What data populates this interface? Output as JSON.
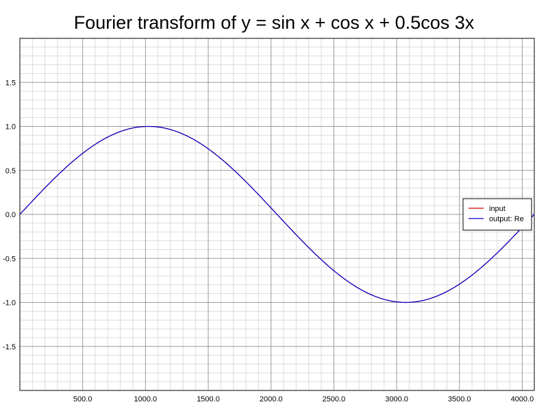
{
  "chart_data": {
    "type": "line",
    "title": "Fourier transform of y = sin x + cos x + 0.5cos 3x",
    "xlabel": "",
    "ylabel": "",
    "xlim": [
      0,
      4096
    ],
    "ylim": [
      -2,
      2
    ],
    "xticks": [
      500,
      1000,
      1500,
      2000,
      2500,
      3000,
      3500,
      4000
    ],
    "xtick_labels": [
      "500.0",
      "1000.0",
      "1500.0",
      "2000.0",
      "2500.0",
      "3000.0",
      "3500.0",
      "4000.0"
    ],
    "yticks": [
      -1.5,
      -1.0,
      -0.5,
      0.0,
      0.5,
      1.0,
      1.5
    ],
    "ytick_labels": [
      "-1.5",
      "-1.0",
      "-0.5",
      "0.0",
      "0.5",
      "1.0",
      "1.5"
    ],
    "grid": true,
    "legend_position": "right",
    "series": [
      {
        "name": "input",
        "color": "#cc0000",
        "x": [
          0,
          256,
          512,
          768,
          1024,
          1280,
          1536,
          1792,
          2048,
          2304,
          2560,
          2816,
          3072,
          3328,
          3584,
          3840,
          4096
        ],
        "y": [
          0.0,
          0.383,
          0.707,
          0.924,
          1.0,
          0.924,
          0.707,
          0.383,
          0.0,
          -0.383,
          -0.707,
          -0.924,
          -1.0,
          -0.924,
          -0.707,
          -0.383,
          0.0
        ]
      },
      {
        "name": "output: Re",
        "color": "#0000cc",
        "x": [
          0,
          256,
          512,
          768,
          1024,
          1280,
          1536,
          1792,
          2048,
          2304,
          2560,
          2816,
          3072,
          3328,
          3584,
          3840,
          4096
        ],
        "y": [
          0.0,
          0.383,
          0.707,
          0.924,
          1.0,
          0.924,
          0.707,
          0.383,
          0.0,
          -0.383,
          -0.707,
          -0.924,
          -1.0,
          -0.924,
          -0.707,
          -0.383,
          0.0
        ]
      }
    ]
  }
}
